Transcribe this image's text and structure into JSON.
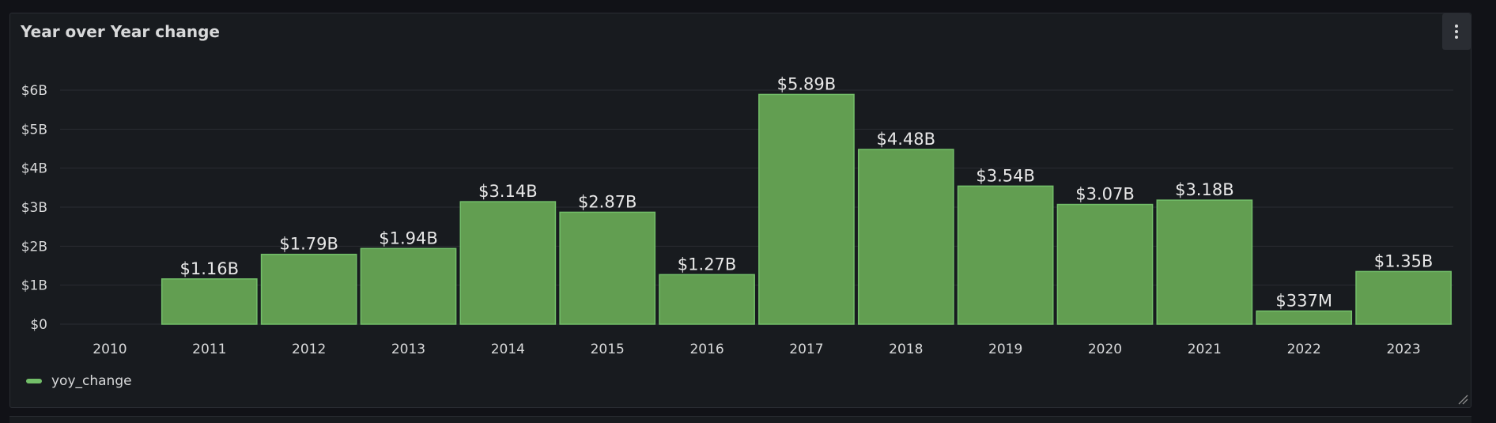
{
  "panel": {
    "title": "Year over Year change"
  },
  "legend": {
    "label": "yoy_change"
  },
  "colors": {
    "bar_fill": "#629e51",
    "bar_stroke": "#73bf69",
    "legend_swatch": "#73bf69",
    "grid": "#2a2d33",
    "text": "#d8d9da",
    "value_label": "#e8e8e8"
  },
  "chart_data": {
    "type": "bar",
    "title": "Year over Year change",
    "xlabel": "",
    "ylabel": "",
    "categories": [
      "2010",
      "2011",
      "2012",
      "2013",
      "2014",
      "2015",
      "2016",
      "2017",
      "2018",
      "2019",
      "2020",
      "2021",
      "2022",
      "2023"
    ],
    "series": [
      {
        "name": "yoy_change",
        "values": [
          0,
          1.16,
          1.79,
          1.94,
          3.14,
          2.87,
          1.27,
          5.89,
          4.48,
          3.54,
          3.07,
          3.18,
          0.337,
          1.35
        ],
        "labels": [
          "",
          "$1.16B",
          "$1.79B",
          "$1.94B",
          "$3.14B",
          "$2.87B",
          "$1.27B",
          "$5.89B",
          "$4.48B",
          "$3.54B",
          "$3.07B",
          "$3.18B",
          "$337M",
          "$1.35B"
        ]
      }
    ],
    "value_unit": "billions USD",
    "yticks": [
      0,
      1,
      2,
      3,
      4,
      5,
      6
    ],
    "ytick_labels": [
      "$0",
      "$1B",
      "$2B",
      "$3B",
      "$4B",
      "$5B",
      "$6B"
    ],
    "ylim": [
      0,
      6
    ],
    "grid": true,
    "legend_position": "bottom-left"
  }
}
